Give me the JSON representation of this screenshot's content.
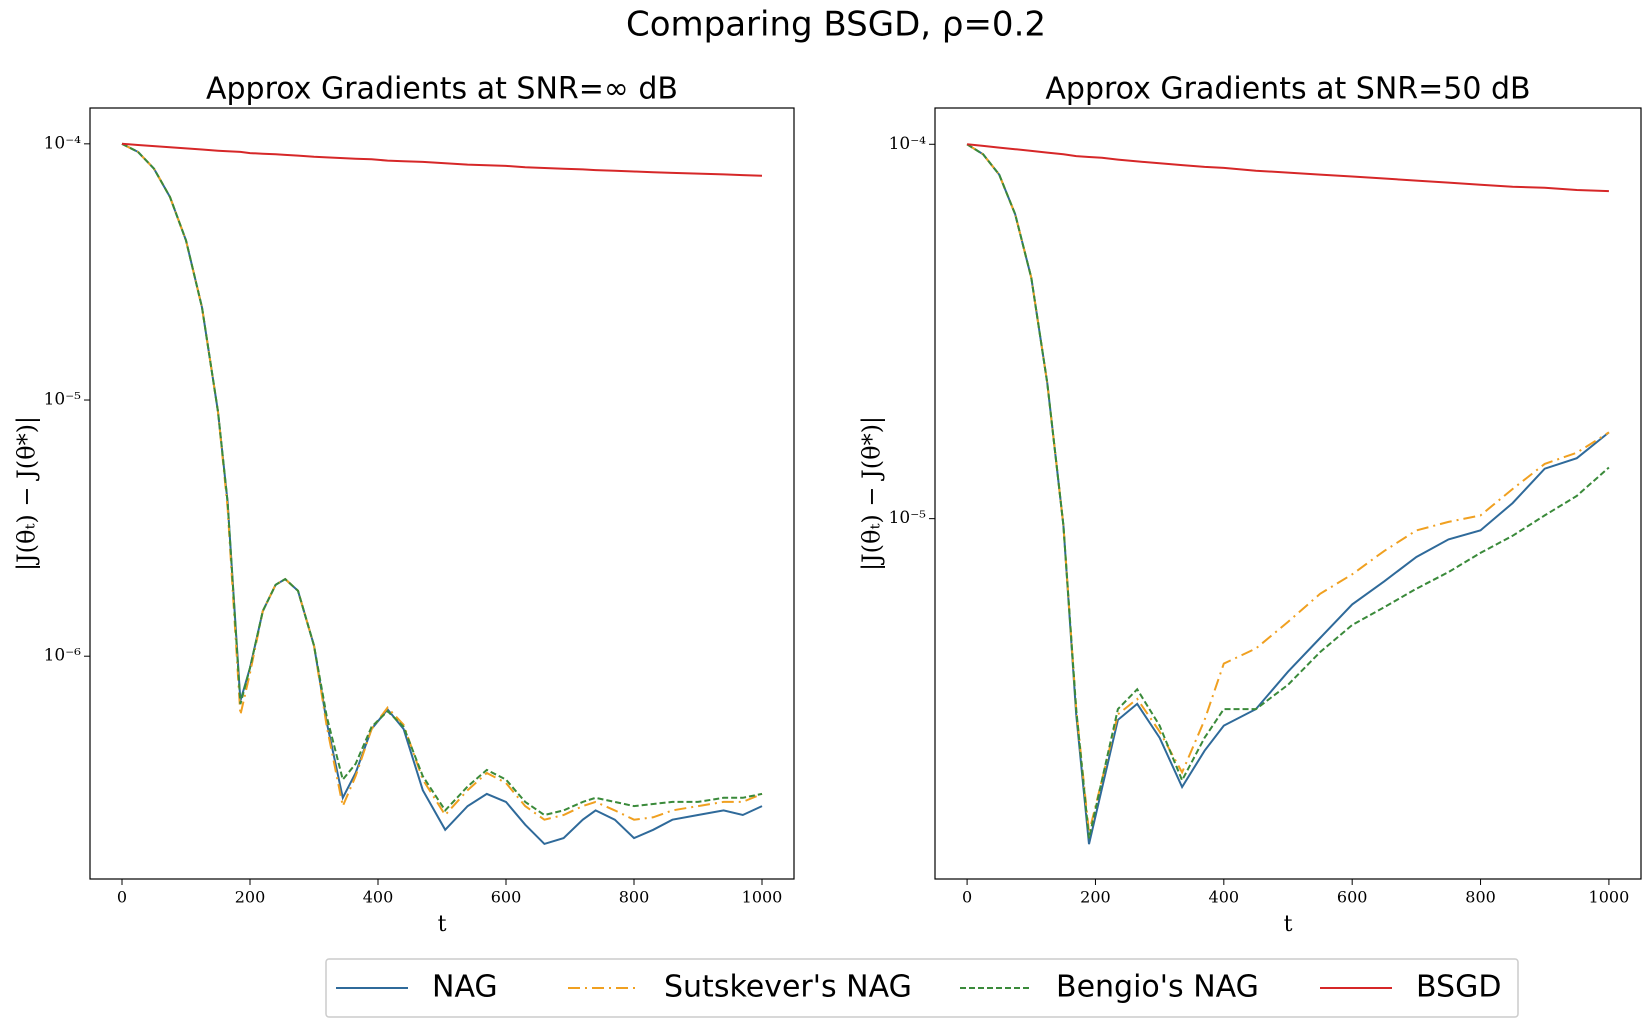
{
  "title": "Comparing BSGD, ρ=0.2",
  "chart_data": [
    {
      "type": "line",
      "title": "Approx Gradients at SNR=∞ dB",
      "xlabel": "t",
      "ylabel": "|J(θₜ) − J(θ*)|",
      "yscale": "log",
      "xlim": [
        -50,
        1050
      ],
      "ylim": [
        1.35e-07,
        0.000138
      ],
      "xticks": [
        0,
        200,
        400,
        600,
        800,
        1000
      ],
      "yticks": [
        {
          "value": 1e-06,
          "label": "10⁻⁶"
        },
        {
          "value": 1e-05,
          "label": "10⁻⁵"
        },
        {
          "value": 0.0001,
          "label": "10⁻⁴"
        }
      ],
      "x": [
        0,
        25,
        50,
        75,
        100,
        125,
        150,
        165,
        185,
        200,
        220,
        240,
        255,
        275,
        300,
        320,
        345,
        365,
        390,
        415,
        440,
        470,
        505,
        540,
        570,
        600,
        630,
        660,
        690,
        720,
        740,
        770,
        800,
        830,
        860,
        900,
        940,
        970,
        1000
      ],
      "series": [
        {
          "name": "NAG",
          "color": "#2f6a9a",
          "dash": "solid",
          "values": [
            0.0001,
            9.3e-05,
            8e-05,
            6.2e-05,
            4.2e-05,
            2.3e-05,
            9e-06,
            4e-06,
            6.7e-07,
            9e-07,
            1.5e-06,
            1.9e-06,
            2e-06,
            1.8e-06,
            1.1e-06,
            5.5e-07,
            2.8e-07,
            3.5e-07,
            5.2e-07,
            6.2e-07,
            5.2e-07,
            3e-07,
            2.1e-07,
            2.6e-07,
            2.9e-07,
            2.7e-07,
            2.2e-07,
            1.85e-07,
            1.95e-07,
            2.3e-07,
            2.5e-07,
            2.3e-07,
            1.95e-07,
            2.1e-07,
            2.3e-07,
            2.4e-07,
            2.5e-07,
            2.4e-07,
            2.6e-07
          ]
        },
        {
          "name": "Sutskever's NAG",
          "color": "#f0a020",
          "dash": "dashdot",
          "values": [
            0.0001,
            9.3e-05,
            8e-05,
            6.2e-05,
            4.2e-05,
            2.3e-05,
            9e-06,
            3.8e-06,
            5.9e-07,
            8.6e-07,
            1.5e-06,
            1.9e-06,
            2e-06,
            1.8e-06,
            1.1e-06,
            5.3e-07,
            2.6e-07,
            3.4e-07,
            5.2e-07,
            6.3e-07,
            5.4e-07,
            3.3e-07,
            2.4e-07,
            3e-07,
            3.5e-07,
            3.2e-07,
            2.6e-07,
            2.3e-07,
            2.4e-07,
            2.6e-07,
            2.7e-07,
            2.5e-07,
            2.3e-07,
            2.35e-07,
            2.5e-07,
            2.6e-07,
            2.7e-07,
            2.7e-07,
            2.9e-07
          ]
        },
        {
          "name": "Bengio's NAG",
          "color": "#3a8a3a",
          "dash": "dashed",
          "values": [
            0.0001,
            9.3e-05,
            8e-05,
            6.2e-05,
            4.2e-05,
            2.3e-05,
            9e-06,
            4e-06,
            6.5e-07,
            9e-07,
            1.5e-06,
            1.9e-06,
            2e-06,
            1.8e-06,
            1.1e-06,
            5.8e-07,
            3.3e-07,
            3.8e-07,
            5.3e-07,
            6.1e-07,
            5.3e-07,
            3.4e-07,
            2.5e-07,
            3.1e-07,
            3.6e-07,
            3.3e-07,
            2.7e-07,
            2.4e-07,
            2.5e-07,
            2.7e-07,
            2.8e-07,
            2.7e-07,
            2.6e-07,
            2.65e-07,
            2.7e-07,
            2.7e-07,
            2.8e-07,
            2.8e-07,
            2.9e-07
          ]
        },
        {
          "name": "BSGD",
          "color": "#d62728",
          "dash": "solid",
          "values": [
            0.0001,
            9.9e-05,
            9.8e-05,
            9.7e-05,
            9.6e-05,
            9.5e-05,
            9.4e-05,
            9.35e-05,
            9.3e-05,
            9.2e-05,
            9.15e-05,
            9.1e-05,
            9.05e-05,
            9e-05,
            8.9e-05,
            8.85e-05,
            8.8e-05,
            8.75e-05,
            8.7e-05,
            8.6e-05,
            8.55e-05,
            8.5e-05,
            8.4e-05,
            8.3e-05,
            8.25e-05,
            8.2e-05,
            8.1e-05,
            8.05e-05,
            8e-05,
            7.95e-05,
            7.9e-05,
            7.85e-05,
            7.8e-05,
            7.75e-05,
            7.7e-05,
            7.65e-05,
            7.6e-05,
            7.55e-05,
            7.5e-05
          ]
        }
      ]
    },
    {
      "type": "line",
      "title": "Approx Gradients at SNR=50 dB",
      "xlabel": "t",
      "ylabel": "|J(θₜ) − J(θ*)|",
      "yscale": "log",
      "xlim": [
        -50,
        1050
      ],
      "ylim": [
        1.09e-06,
        0.000125
      ],
      "xticks": [
        0,
        200,
        400,
        600,
        800,
        1000
      ],
      "yticks": [
        {
          "value": 1e-05,
          "label": "10⁻⁵"
        },
        {
          "value": 0.0001,
          "label": "10⁻⁴"
        }
      ],
      "x": [
        0,
        25,
        50,
        75,
        100,
        125,
        150,
        170,
        190,
        210,
        235,
        265,
        300,
        335,
        370,
        400,
        450,
        500,
        550,
        600,
        650,
        700,
        750,
        800,
        850,
        900,
        950,
        1000
      ],
      "series": [
        {
          "name": "NAG",
          "color": "#2f6a9a",
          "dash": "solid",
          "values": [
            0.0001,
            9.4e-05,
            8.3e-05,
            6.5e-05,
            4.4e-05,
            2.3e-05,
            9.6e-06,
            3e-06,
            1.35e-06,
            1.9e-06,
            2.9e-06,
            3.2e-06,
            2.6e-06,
            1.92e-06,
            2.4e-06,
            2.8e-06,
            3.1e-06,
            3.9e-06,
            4.8e-06,
            5.9e-06,
            6.8e-06,
            7.9e-06,
            8.8e-06,
            9.3e-06,
            1.1e-05,
            1.36e-05,
            1.45e-05,
            1.7e-05
          ]
        },
        {
          "name": "Sutskever's NAG",
          "color": "#f0a020",
          "dash": "dashdot",
          "values": [
            0.0001,
            9.4e-05,
            8.3e-05,
            6.5e-05,
            4.4e-05,
            2.3e-05,
            9.6e-06,
            3.1e-06,
            1.45e-06,
            2e-06,
            3e-06,
            3.3e-06,
            2.7e-06,
            2.1e-06,
            2.9e-06,
            4.1e-06,
            4.5e-06,
            5.3e-06,
            6.3e-06,
            7.1e-06,
            8.2e-06,
            9.3e-06,
            9.8e-06,
            1.02e-05,
            1.2e-05,
            1.4e-05,
            1.5e-05,
            1.7e-05
          ]
        },
        {
          "name": "Bengio's NAG",
          "color": "#3a8a3a",
          "dash": "dashed",
          "values": [
            0.0001,
            9.4e-05,
            8.3e-05,
            6.5e-05,
            4.4e-05,
            2.3e-05,
            9.6e-06,
            3.1e-06,
            1.4e-06,
            2e-06,
            3.1e-06,
            3.5e-06,
            2.8e-06,
            2e-06,
            2.6e-06,
            3.1e-06,
            3.1e-06,
            3.6e-06,
            4.4e-06,
            5.2e-06,
            5.8e-06,
            6.5e-06,
            7.2e-06,
            8.1e-06,
            9e-06,
            1.02e-05,
            1.15e-05,
            1.37e-05
          ]
        },
        {
          "name": "BSGD",
          "color": "#d62728",
          "dash": "solid",
          "values": [
            0.0001,
            9.9e-05,
            9.8e-05,
            9.7e-05,
            9.6e-05,
            9.5e-05,
            9.4e-05,
            9.3e-05,
            9.25e-05,
            9.2e-05,
            9.1e-05,
            9e-05,
            8.9e-05,
            8.8e-05,
            8.7e-05,
            8.65e-05,
            8.5e-05,
            8.4e-05,
            8.3e-05,
            8.2e-05,
            8.1e-05,
            8e-05,
            7.9e-05,
            7.8e-05,
            7.7e-05,
            7.65e-05,
            7.55e-05,
            7.5e-05
          ]
        }
      ]
    }
  ]
}
